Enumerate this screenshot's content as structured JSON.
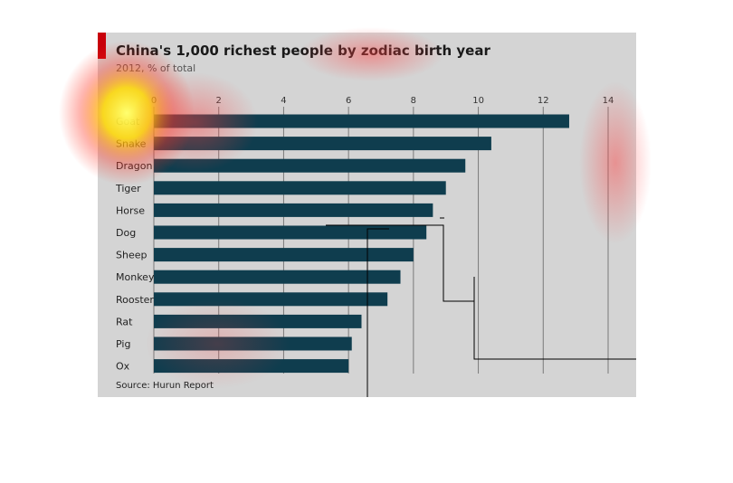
{
  "chart_data": {
    "type": "bar",
    "orientation": "horizontal",
    "title": "China's 1,000 richest people by zodiac birth year",
    "subtitle": "2012, % of total",
    "source": "Source: Hurun Report",
    "categories": [
      "Goat",
      "Snake",
      "Dragon",
      "Tiger",
      "Horse",
      "Dog",
      "Sheep",
      "Monkey",
      "Rooster",
      "Rat",
      "Pig",
      "Ox"
    ],
    "values": [
      12.8,
      10.4,
      9.6,
      9.0,
      8.6,
      8.4,
      8.0,
      7.6,
      7.2,
      6.4,
      6.1,
      6.0
    ],
    "xlim": [
      0,
      14
    ],
    "xticks": [
      0,
      2,
      4,
      6,
      8,
      10,
      12,
      14
    ],
    "xlabel": "",
    "ylabel": "",
    "grid": true,
    "bar_color": "#0f3d4e",
    "accent_color": "#c8000a"
  }
}
